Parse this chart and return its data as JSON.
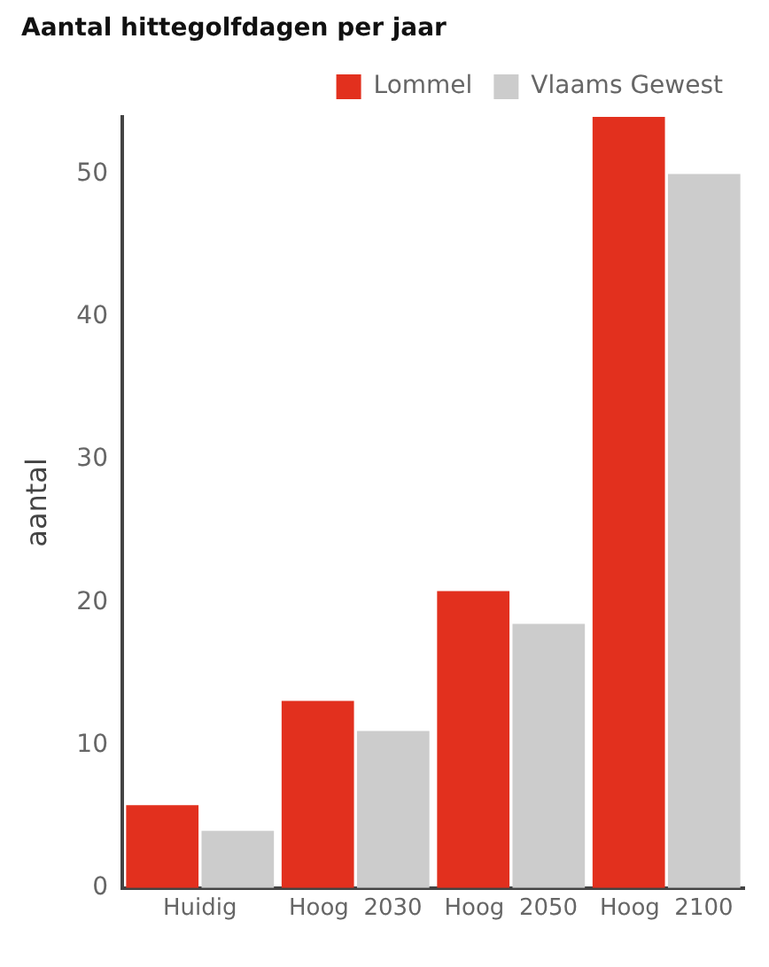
{
  "chart_data": {
    "type": "bar",
    "title": "Aantal hittegolfdagen per jaar",
    "ylabel": "aantal",
    "categories": [
      "Huidig",
      "Hoog  2030",
      "Hoog  2050",
      "Hoog  2100"
    ],
    "series": [
      {
        "name": "Lommel",
        "color": "#e2301e",
        "values": [
          5.8,
          13.1,
          20.8,
          54
        ]
      },
      {
        "name": "Vlaams Gewest",
        "color": "#cccccc",
        "values": [
          4,
          11,
          18.5,
          50
        ]
      }
    ],
    "ylim": [
      0,
      54
    ],
    "yticks": [
      0,
      10,
      20,
      30,
      40,
      50
    ],
    "grid": false,
    "legend": "top right"
  }
}
